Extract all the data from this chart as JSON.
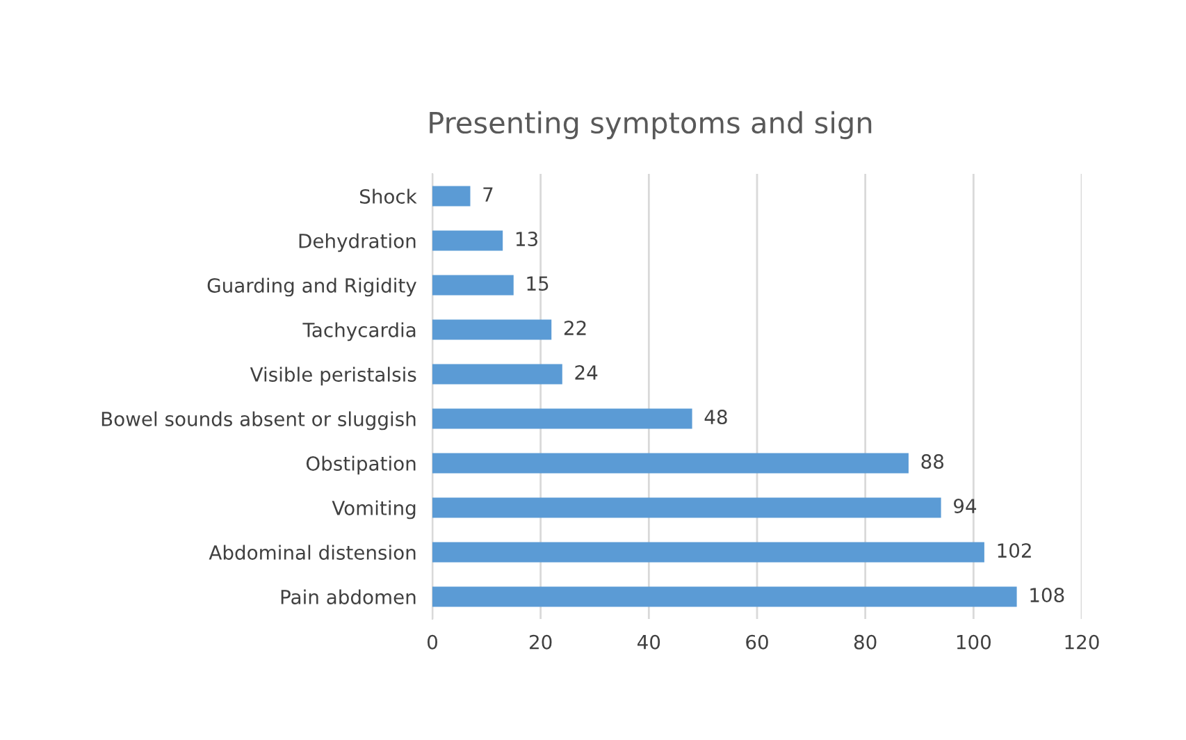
{
  "chart_data": {
    "type": "bar",
    "orientation": "horizontal",
    "title": "Presenting symptoms and sign",
    "categories": [
      "Shock",
      "Dehydration",
      "Guarding and Rigidity",
      "Tachycardia",
      "Visible peristalsis",
      "Bowel sounds absent or sluggish",
      "Obstipation",
      "Vomiting",
      "Abdominal distension",
      "Pain abdomen"
    ],
    "values": [
      7,
      13,
      15,
      22,
      24,
      48,
      88,
      94,
      102,
      108
    ],
    "color": "#5b9bd5",
    "xlim": [
      0,
      120
    ],
    "xticks": [
      0,
      20,
      40,
      60,
      80,
      100,
      120
    ],
    "grid": "x",
    "data_labels": true
  }
}
